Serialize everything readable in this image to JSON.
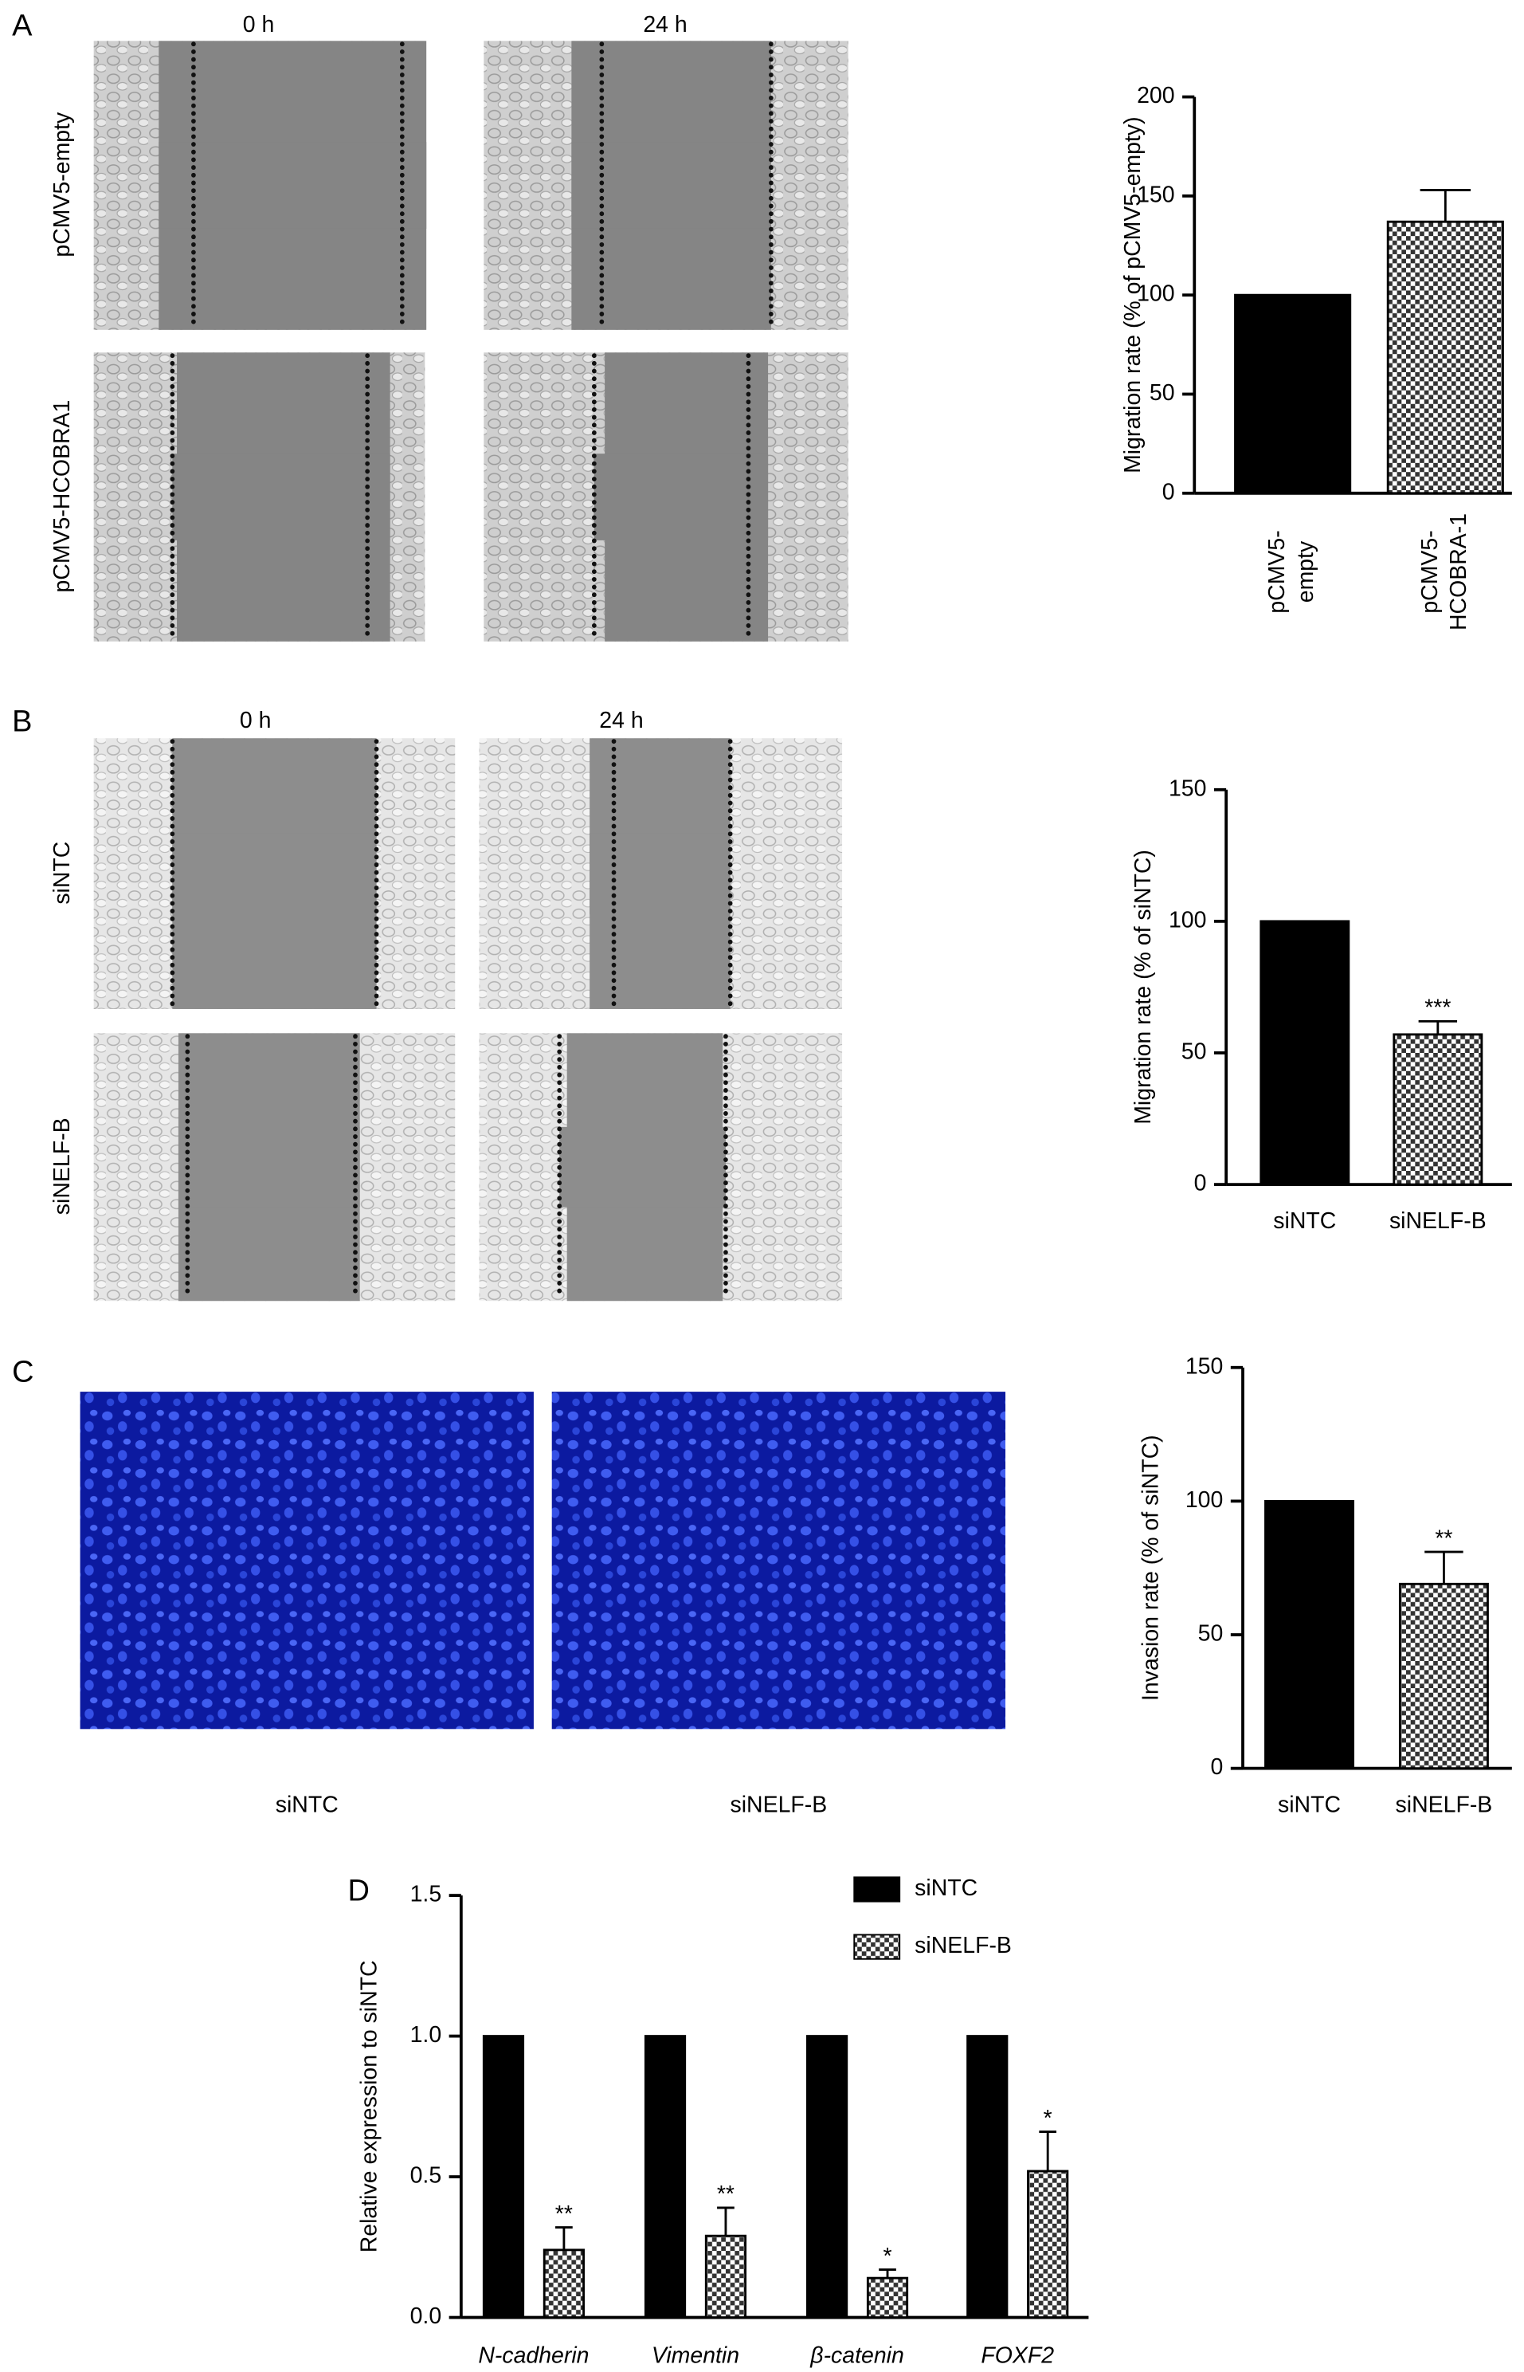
{
  "panel_labels": [
    "A",
    "B",
    "C",
    "D"
  ],
  "panel_a_images": {
    "columns": [
      "0 h",
      "24 h"
    ],
    "rows": [
      "pCMV5-empty",
      "pCMV5-HCOBRA1"
    ]
  },
  "panel_b_images": {
    "columns": [
      "0 h",
      "24 h"
    ],
    "rows": [
      "siNTC",
      "siNELF-B"
    ]
  },
  "panel_c_images": {
    "captions": [
      "siNTC",
      "siNELF-B"
    ]
  },
  "chart_data": [
    {
      "type": "bar",
      "y_label": "Migration rate (% of pCMV5-empty)",
      "categories": [
        [
          "pCMV5-",
          "empty"
        ],
        [
          "pCMV5-",
          "HCOBRA-1"
        ]
      ],
      "values": [
        100,
        137
      ],
      "errors": [
        null,
        16
      ],
      "color": "#000000",
      "patterns": [
        "solid",
        "checker"
      ],
      "ylim": [
        0,
        200
      ],
      "yticks": [
        0,
        50,
        100,
        150,
        200
      ]
    },
    {
      "type": "bar",
      "y_label": "Migration rate (% of siNTC)",
      "categories": [
        "siNTC",
        "siNELF-B"
      ],
      "values": [
        100,
        57
      ],
      "errors": [
        null,
        5
      ],
      "annotations": [
        null,
        "***"
      ],
      "color": "#000000",
      "patterns": [
        "solid",
        "checker"
      ],
      "ylim": [
        0,
        150
      ],
      "yticks": [
        0,
        50,
        100,
        150
      ]
    },
    {
      "type": "bar",
      "y_label": "Invasion rate (% of siNTC)",
      "categories": [
        "siNTC",
        "siNELF-B"
      ],
      "values": [
        100,
        69
      ],
      "errors": [
        null,
        12
      ],
      "annotations": [
        null,
        "**"
      ],
      "color": "#000000",
      "patterns": [
        "solid",
        "checker"
      ],
      "ylim": [
        0,
        150
      ],
      "yticks": [
        0,
        50,
        100,
        150
      ]
    },
    {
      "type": "grouped-bar",
      "y_label": "Relative expression to siNTC",
      "categories": [
        "N-cadherin",
        "Vimentin",
        "β-catenin",
        "FOXF2"
      ],
      "series": [
        {
          "name": "siNTC",
          "color": "#000000",
          "pattern": "solid",
          "values": [
            1.0,
            1.0,
            1.0,
            1.0
          ]
        },
        {
          "name": "siNELF-B",
          "color": "#000000",
          "pattern": "checker",
          "values": [
            0.24,
            0.29,
            0.14,
            0.52
          ],
          "errors": [
            0.08,
            0.1,
            0.03,
            0.14
          ],
          "annotations": [
            "**",
            "**",
            "*",
            "*"
          ]
        }
      ],
      "legend": "top-right",
      "ylim": [
        0,
        1.5
      ],
      "yticks": [
        {
          "value": 0,
          "label": "0.0"
        },
        0.5,
        {
          "value": 1,
          "label": "1.0"
        },
        1.5
      ]
    }
  ]
}
